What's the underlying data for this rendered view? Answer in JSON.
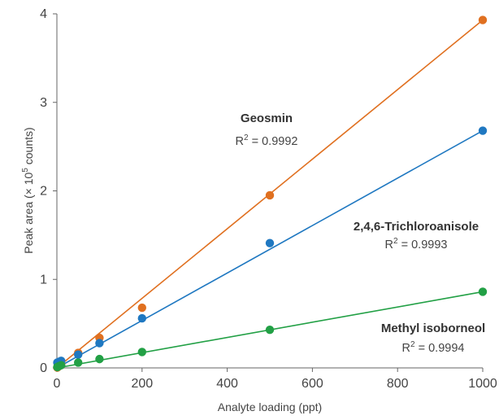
{
  "chart_data": {
    "type": "scatter",
    "xlabel": "Analyte loading (ppt)",
    "ylabel_parts": {
      "prefix": "Peak area (× 10",
      "superscript": "5",
      "suffix": " counts)"
    },
    "xlim": [
      0,
      1000
    ],
    "ylim": [
      0,
      4
    ],
    "x_ticks": [
      0,
      200,
      400,
      600,
      800,
      1000
    ],
    "y_ticks": [
      0,
      1,
      2,
      3,
      4
    ],
    "grid": false,
    "series": [
      {
        "name": "Geosmin",
        "r2_value": "0.9992",
        "color": "#e07020",
        "points": [
          [
            1,
            0.004
          ],
          [
            5,
            0.02
          ],
          [
            10,
            0.04
          ],
          [
            50,
            0.17
          ],
          [
            100,
            0.34
          ],
          [
            200,
            0.68
          ],
          [
            500,
            1.95
          ],
          [
            1000,
            3.93
          ]
        ],
        "fit": [
          [
            0,
            0
          ],
          [
            1000,
            3.93
          ]
        ]
      },
      {
        "name": "2,4,6-Trichloroanisole",
        "r2_value": "0.9993",
        "color": "#1f78c1",
        "points": [
          [
            1,
            0.06
          ],
          [
            5,
            0.07
          ],
          [
            10,
            0.08
          ],
          [
            50,
            0.15
          ],
          [
            100,
            0.28
          ],
          [
            200,
            0.56
          ],
          [
            500,
            1.41
          ],
          [
            1000,
            2.68
          ]
        ],
        "fit": [
          [
            0,
            0
          ],
          [
            1000,
            2.68
          ]
        ]
      },
      {
        "name": "Methyl isoborneol",
        "r2_value": "0.9994",
        "color": "#22a045",
        "points": [
          [
            1,
            0.01
          ],
          [
            5,
            0.02
          ],
          [
            10,
            0.03
          ],
          [
            50,
            0.06
          ],
          [
            100,
            0.1
          ],
          [
            200,
            0.18
          ],
          [
            500,
            0.43
          ],
          [
            1000,
            0.86
          ]
        ],
        "fit": [
          [
            0,
            0
          ],
          [
            1000,
            0.86
          ]
        ]
      }
    ],
    "annotation_r2_prefix": "R",
    "annotation_r2_exponent": "2",
    "annotation_r2_equals": " = "
  }
}
